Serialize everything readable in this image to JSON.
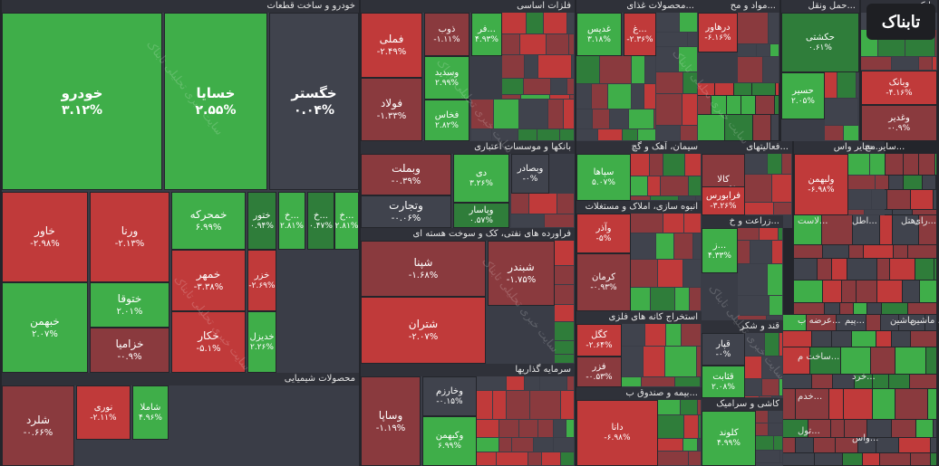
{
  "chart_data": {
    "type": "heatmap",
    "subtype": "treemap",
    "colors": {
      "neg": "#c03a3a",
      "neg_dark": "#8a3a3e",
      "pos": "#3fae49",
      "pos_dark": "#2f7d3a",
      "neutral": "#40434d"
    },
    "sectors": [
      {
        "name": "خودرو و ساخت قطعات",
        "items": [
          {
            "name": "خودرو",
            "pct": "۳.۱۲%",
            "v": 3.12
          },
          {
            "name": "خسایا",
            "pct": "۲.۵۵%",
            "v": 2.55
          },
          {
            "name": "خگستر",
            "pct": "۰.۰۴%",
            "v": 0.04
          },
          {
            "name": "خاور",
            "pct": "-۲.۹۸%",
            "v": -2.98
          },
          {
            "name": "ورنا",
            "pct": "-۲.۱۳%",
            "v": -2.13
          },
          {
            "name": "خمحرکه",
            "pct": "۶.۹۹%",
            "v": 6.99
          },
          {
            "name": "ختور",
            "pct": "۰.۹۴%",
            "v": 0.94
          },
          {
            "name": "خ...",
            "pct": "۲.۸۱%",
            "v": 2.81
          },
          {
            "name": "خ...",
            "pct": "۰.۴۷%",
            "v": 0.47
          },
          {
            "name": "خ...",
            "pct": "۲.۸۱%",
            "v": 2.81
          },
          {
            "name": "ختوقا",
            "pct": "۲.۰۱%",
            "v": 2.01
          },
          {
            "name": "خمهر",
            "pct": "-۳.۳۸%",
            "v": -3.38
          },
          {
            "name": "خزر",
            "pct": "-۲.۶۹%",
            "v": -2.69
          },
          {
            "name": "خبهمن",
            "pct": "۲.۰۷%",
            "v": 2.07
          },
          {
            "name": "خزامیا",
            "pct": "-۰.۹%",
            "v": -0.9
          },
          {
            "name": "خکار",
            "pct": "-۵.۱%",
            "v": -5.1
          },
          {
            "name": "خدیزل",
            "pct": "۲.۲۶%",
            "v": 2.26
          }
        ]
      },
      {
        "name": "محصولات شیمیایی",
        "items": [
          {
            "name": "شلرد",
            "pct": "-۰.۶۶%",
            "v": -0.66
          },
          {
            "name": "نوری",
            "pct": "-۲.۱۱%",
            "v": -2.11
          },
          {
            "name": "شاملا",
            "pct": "۴.۹۶%",
            "v": 4.96
          }
        ]
      },
      {
        "name": "فلزات اساسی",
        "items": [
          {
            "name": "فملی",
            "pct": "-۲.۴۹%",
            "v": -2.49
          },
          {
            "name": "فولاد",
            "pct": "-۱.۳۳%",
            "v": -1.33
          },
          {
            "name": "ذوب",
            "pct": "-۱.۱۱%",
            "v": -1.11
          },
          {
            "name": "فر...",
            "pct": "۴.۹۳%",
            "v": 4.93
          },
          {
            "name": "وسدید",
            "pct": "۲.۹۹%",
            "v": 2.99
          },
          {
            "name": "فخاس",
            "pct": "۲.۸۲%",
            "v": 2.82
          }
        ]
      },
      {
        "name": "بانکها و موسسات اعتباری",
        "items": [
          {
            "name": "وبملت",
            "pct": "-۰.۳۹%",
            "v": -0.39
          },
          {
            "name": "دی",
            "pct": "۳.۲۶%",
            "v": 3.26
          },
          {
            "name": "وبصادر",
            "pct": "-۰%",
            "v": 0
          },
          {
            "name": "وتجارت",
            "pct": "-۰.۰۶%",
            "v": -0.06
          },
          {
            "name": "وپاسار",
            "pct": "۰.۵۷%",
            "v": 0.57
          }
        ]
      },
      {
        "name": "فراورده های نفتی، کک و سوخت هسته ای",
        "items": [
          {
            "name": "شپنا",
            "pct": "-۱.۶۸%",
            "v": -1.68
          },
          {
            "name": "شبندر",
            "pct": "-۱.۷۵%",
            "v": -1.75
          },
          {
            "name": "شتران",
            "pct": "-۲.۰۷%",
            "v": -2.07
          }
        ]
      },
      {
        "name": "سرمایه گذاریها",
        "items": [
          {
            "name": "وساپا",
            "pct": "-۱.۱۹%",
            "v": -1.19
          },
          {
            "name": "وخارزم",
            "pct": "-۰.۱۵%",
            "v": -0.15
          },
          {
            "name": "وکبهمن",
            "pct": "۶.۹۹%",
            "v": 6.99
          }
        ]
      },
      {
        "name": "محصولات غذای...",
        "items": [
          {
            "name": "غدیس",
            "pct": "۳.۱۸%",
            "v": 3.18
          },
          {
            "name": "غ...",
            "pct": "-۲.۳۶%",
            "v": -2.36
          }
        ]
      },
      {
        "name": "سیمان، آهک و گچ",
        "items": [
          {
            "name": "سپاها",
            "pct": "۵.۰۷%",
            "v": 5.07
          }
        ]
      },
      {
        "name": "انبوه سازی، املاک و مستغلات",
        "items": [
          {
            "name": "وآذر",
            "pct": "-۵%",
            "v": -5
          },
          {
            "name": "کرمان",
            "pct": "-۰.۹۳%",
            "v": -0.93
          }
        ]
      },
      {
        "name": "استخراج کانه های فلزی",
        "items": [
          {
            "name": "کگل",
            "pct": "-۲.۶۴%",
            "v": -2.64
          },
          {
            "name": "فزر",
            "pct": "-۰.۵۳%",
            "v": -0.53
          }
        ]
      },
      {
        "name": "بیمه و صندوق ب...",
        "items": [
          {
            "name": "دانا",
            "pct": "-۶.۹۸%",
            "v": -6.98
          }
        ]
      },
      {
        "name": "مواد و مح...",
        "items": [
          {
            "name": "درهاور",
            "pct": "-۶.۱۶%",
            "v": -6.16
          }
        ]
      },
      {
        "name": "فعالیتهای...",
        "items": [
          {
            "name": "کالا",
            "pct": "-۰.۴۹%",
            "v": -0.49
          },
          {
            "name": "فرابورس",
            "pct": "-۳.۲۶%",
            "v": -3.26
          }
        ]
      },
      {
        "name": "زراعت و خ...",
        "items": [
          {
            "name": "ز...",
            "pct": "۴.۳۳%",
            "v": 4.33
          }
        ]
      },
      {
        "name": "قند و شکر",
        "items": [
          {
            "name": "قپار",
            "pct": "-۰%",
            "v": 0
          },
          {
            "name": "قثابت",
            "pct": "۲.۰۸%",
            "v": 2.08
          }
        ]
      },
      {
        "name": "کاشی و سرامیک",
        "items": [
          {
            "name": "کلوند",
            "pct": "۴.۹۹%",
            "v": 4.99
          }
        ]
      },
      {
        "name": "حمل ونقل...",
        "items": [
          {
            "name": "حکشتی",
            "pct": "۰.۶۱%",
            "v": 0.61
          },
          {
            "name": "حسیر",
            "pct": "۲.۰۵%",
            "v": 2.05
          }
        ]
      },
      {
        "name": "بانکی",
        "items": [
          {
            "name": "وبانک",
            "pct": "-۴.۱۶%",
            "v": -4.16
          },
          {
            "name": "وغدیر",
            "pct": "-۰.۹%",
            "v": -0.9
          }
        ]
      },
      {
        "name": "سایر واس...",
        "items": [
          {
            "name": "ولبهمن",
            "pct": "-۶.۹۸%",
            "v": -6.98
          }
        ]
      }
    ],
    "other_headers": [
      "سایر مح...",
      "لاست...",
      "اطل...",
      "هتل...",
      "رای...",
      "عرضه ب...",
      "پیم...",
      "ماشین ...",
      "ماشین ...",
      "ساخت م...",
      "خدم...",
      "تول...",
      "خرد...",
      "واس..."
    ]
  },
  "watermark": "سایت خبری تحلیلی تابناک",
  "logo": "تابناک"
}
